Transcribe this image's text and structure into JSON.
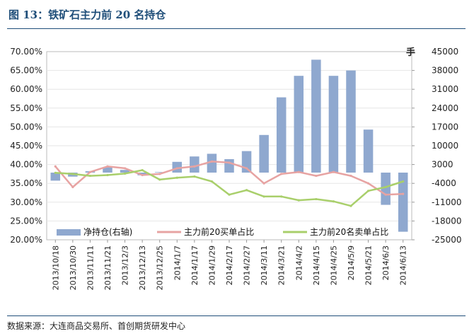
{
  "figure": {
    "title": "图 13：铁矿石主力前 20 名持仓",
    "source": "数据来源：大连商品交易所、首创期货研发中心"
  },
  "chart_data": {
    "type": "bar+line",
    "categories": [
      "2013/10/18",
      "2013/10/30",
      "2013/11/11",
      "2013/11/21",
      "2013/12/3",
      "2013/12/13",
      "2013/12/25",
      "2014/1/7",
      "2014/1/17",
      "2014/1/29",
      "2014/2/17",
      "2014/2/27",
      "2014/3/11",
      "2014/3/21",
      "2014/4/2",
      "2014/4/15",
      "2014/4/25",
      "2014/5/9",
      "2014/5/21",
      "2014/6/3",
      "2014/6/13"
    ],
    "left_axis": {
      "ylim": [
        0.2,
        0.7
      ],
      "ticks": [
        "70.00%",
        "65.00%",
        "60.00%",
        "55.00%",
        "50.00%",
        "45.00%",
        "40.00%",
        "35.00%",
        "30.00%",
        "25.00%",
        "20.00%"
      ]
    },
    "right_axis": {
      "unit": "手",
      "ylim": [
        -25000,
        45000
      ],
      "ticks": [
        "45000",
        "38000",
        "31000",
        "24000",
        "17000",
        "10000",
        "3000",
        "-4000",
        "-11000",
        "-18000",
        "-25000"
      ]
    },
    "series": [
      {
        "name": "净持仓(右轴)",
        "axis": "right",
        "type": "bar",
        "color": "#8fa8cf",
        "values": [
          -3000,
          -1500,
          500,
          2000,
          1000,
          -1000,
          200,
          4000,
          6000,
          7000,
          5000,
          8000,
          14000,
          28000,
          36000,
          42000,
          36000,
          38000,
          16000,
          -12000,
          -22000
        ]
      },
      {
        "name": "主力前20买单占比",
        "axis": "left",
        "type": "line",
        "color": "#e7a3a2",
        "values": [
          0.395,
          0.34,
          0.38,
          0.395,
          0.39,
          0.372,
          0.375,
          0.39,
          0.395,
          0.408,
          0.405,
          0.39,
          0.35,
          0.375,
          0.38,
          0.37,
          0.38,
          0.37,
          0.35,
          0.32,
          0.322
        ]
      },
      {
        "name": "主力前20名卖单占比",
        "axis": "left",
        "type": "line",
        "color": "#a9cf6b",
        "values": [
          0.378,
          0.375,
          0.37,
          0.372,
          0.376,
          0.385,
          0.36,
          0.365,
          0.368,
          0.355,
          0.32,
          0.332,
          0.315,
          0.315,
          0.305,
          0.308,
          0.302,
          0.29,
          0.33,
          0.34,
          0.355
        ]
      }
    ],
    "legend": "bottom"
  }
}
